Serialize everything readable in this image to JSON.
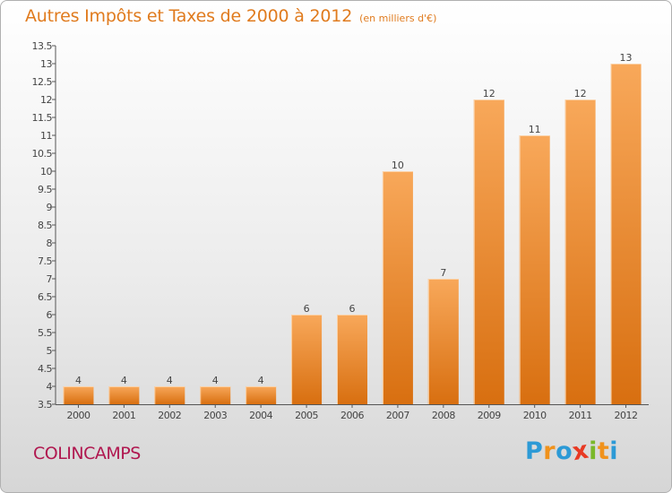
{
  "title": "Autres Impôts et Taxes de 2000 à 2012",
  "subtitle": "(en milliers d'€)",
  "place_name": "COLINCAMPS",
  "logo": {
    "text": "Proxiti",
    "letters": [
      "P",
      "r",
      "o",
      "x",
      "i",
      "t",
      "i"
    ],
    "colors": [
      "#2c9ad6",
      "#f0921c",
      "#2c9ad6",
      "#e83a24",
      "#7ab829",
      "#f0921c",
      "#2c9ad6"
    ]
  },
  "colors": {
    "accent": "#e07b1e",
    "place": "#b0174f",
    "bar_top": "#f8a85a",
    "bar_bottom": "#d86f10"
  },
  "chart_data": {
    "type": "bar",
    "categories": [
      "2000",
      "2001",
      "2002",
      "2003",
      "2004",
      "2005",
      "2006",
      "2007",
      "2008",
      "2009",
      "2010",
      "2011",
      "2012"
    ],
    "values": [
      4,
      4,
      4,
      4,
      4,
      6,
      6,
      10,
      7,
      12,
      11,
      12,
      13
    ],
    "data_labels": [
      "4",
      "4",
      "4",
      "4",
      "4",
      "6",
      "6",
      "10",
      "7",
      "12",
      "11",
      "12",
      "13"
    ],
    "ylim": [
      3.5,
      13.5
    ],
    "yticks": [
      "3.5",
      "4",
      "4.5",
      "5",
      "5.5",
      "6",
      "6.5",
      "7",
      "7.5",
      "8",
      "8.5",
      "9",
      "9.5",
      "10",
      "10.5",
      "11",
      "11.5",
      "12",
      "12.5",
      "13",
      "13.5"
    ],
    "grid": false,
    "legend": "none"
  }
}
